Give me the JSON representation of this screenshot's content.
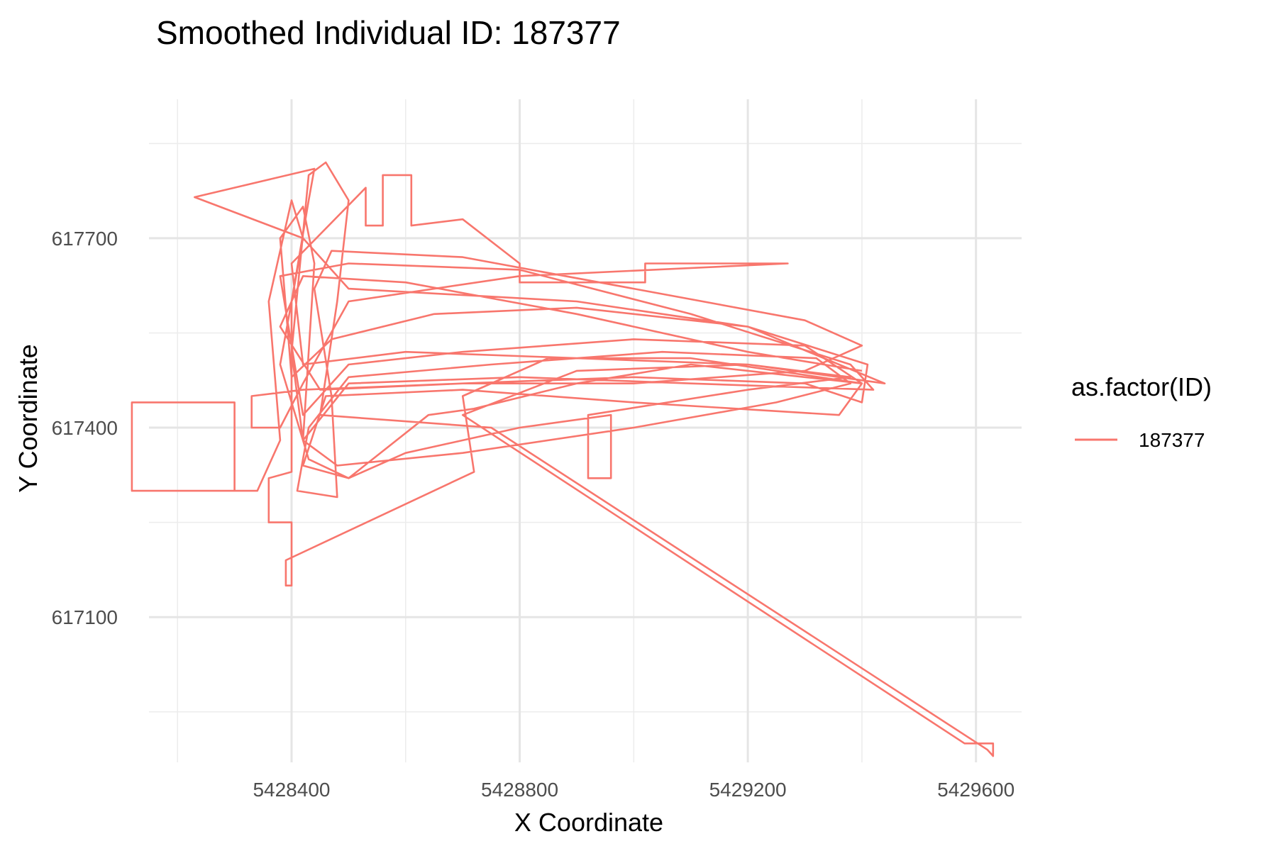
{
  "chart_data": {
    "type": "line",
    "title": "Smoothed Individual ID: 187377",
    "xlabel": "X Coordinate",
    "ylabel": "Y Coordinate",
    "xlim": [
      5428150,
      5429680
    ],
    "ylim": [
      616870,
      617920
    ],
    "x_ticks": [
      5428400,
      5428800,
      5429200,
      5429600
    ],
    "x_minor": [
      5428200,
      5428600,
      5429000,
      5429400
    ],
    "y_ticks": [
      617100,
      617400,
      617700
    ],
    "y_minor": [
      616950,
      617250,
      617550,
      617850
    ],
    "x_tick_labels": [
      "5428400",
      "5428800",
      "5429200",
      "5429600"
    ],
    "y_tick_labels": [
      "617100",
      "617400",
      "617700"
    ],
    "grid": true,
    "legend": {
      "title": "as.factor(ID)",
      "position": "right",
      "entries": [
        "187377"
      ]
    },
    "series": [
      {
        "name": "187377",
        "color": "#F8766D",
        "points": [
          [
            5428120,
            617300
          ],
          [
            5428300,
            617300
          ],
          [
            5428300,
            617440
          ],
          [
            5428120,
            617440
          ],
          [
            5428120,
            617300
          ],
          [
            5428340,
            617300
          ],
          [
            5428380,
            617380
          ],
          [
            5428360,
            617600
          ],
          [
            5428400,
            617760
          ],
          [
            5428420,
            617700
          ],
          [
            5428380,
            617500
          ],
          [
            5428430,
            617350
          ],
          [
            5428500,
            617320
          ],
          [
            5428640,
            617420
          ],
          [
            5428720,
            617430
          ],
          [
            5428900,
            617470
          ],
          [
            5429100,
            617500
          ],
          [
            5429300,
            617480
          ],
          [
            5429400,
            617470
          ],
          [
            5429300,
            617530
          ],
          [
            5429000,
            617540
          ],
          [
            5428700,
            617520
          ],
          [
            5428500,
            617500
          ],
          [
            5428420,
            617420
          ],
          [
            5428380,
            617640
          ],
          [
            5428500,
            617660
          ],
          [
            5428800,
            617650
          ],
          [
            5429100,
            617580
          ],
          [
            5429380,
            617500
          ],
          [
            5429420,
            617460
          ],
          [
            5429100,
            617470
          ],
          [
            5428800,
            617480
          ],
          [
            5428500,
            617470
          ],
          [
            5428420,
            617380
          ],
          [
            5428400,
            617520
          ],
          [
            5428430,
            617800
          ],
          [
            5428460,
            617820
          ],
          [
            5428500,
            617760
          ],
          [
            5428480,
            617600
          ],
          [
            5428450,
            617420
          ],
          [
            5428750,
            617400
          ],
          [
            5429620,
            616890
          ],
          [
            5429630,
            616880
          ],
          [
            5429630,
            616900
          ],
          [
            5429580,
            616900
          ],
          [
            5428700,
            617420
          ],
          [
            5428900,
            617490
          ],
          [
            5429200,
            617500
          ],
          [
            5429440,
            617470
          ],
          [
            5429200,
            617560
          ],
          [
            5428900,
            617600
          ],
          [
            5428500,
            617620
          ],
          [
            5428420,
            617700
          ],
          [
            5428230,
            617765
          ],
          [
            5428440,
            617810
          ],
          [
            5428430,
            617760
          ],
          [
            5428400,
            617600
          ],
          [
            5428400,
            617330
          ],
          [
            5428360,
            617320
          ],
          [
            5428360,
            617250
          ],
          [
            5428400,
            617250
          ],
          [
            5428400,
            617150
          ],
          [
            5428390,
            617150
          ],
          [
            5428390,
            617190
          ],
          [
            5428720,
            617330
          ],
          [
            5428700,
            617450
          ],
          [
            5428850,
            617510
          ],
          [
            5429100,
            617510
          ],
          [
            5429400,
            617470
          ],
          [
            5429360,
            617420
          ],
          [
            5429000,
            617440
          ],
          [
            5428700,
            617460
          ],
          [
            5428460,
            617450
          ],
          [
            5428420,
            617340
          ],
          [
            5428500,
            617320
          ],
          [
            5428600,
            617360
          ],
          [
            5428800,
            617400
          ],
          [
            5428960,
            617420
          ],
          [
            5428960,
            617320
          ],
          [
            5428920,
            617320
          ],
          [
            5428920,
            617420
          ],
          [
            5429200,
            617460
          ],
          [
            5429380,
            617480
          ],
          [
            5429200,
            617500
          ],
          [
            5428900,
            617510
          ],
          [
            5428600,
            617520
          ],
          [
            5428420,
            617500
          ],
          [
            5428400,
            617660
          ],
          [
            5428530,
            617780
          ],
          [
            5428530,
            617720
          ],
          [
            5428560,
            617720
          ],
          [
            5428560,
            617800
          ],
          [
            5428610,
            617800
          ],
          [
            5428610,
            617720
          ],
          [
            5428700,
            617730
          ],
          [
            5428800,
            617660
          ],
          [
            5428800,
            617630
          ],
          [
            5429020,
            617630
          ],
          [
            5429020,
            617660
          ],
          [
            5429270,
            617660
          ],
          [
            5428800,
            617640
          ],
          [
            5428500,
            617600
          ],
          [
            5428420,
            617470
          ],
          [
            5428380,
            617400
          ],
          [
            5428330,
            617400
          ],
          [
            5428330,
            617450
          ],
          [
            5428420,
            617460
          ],
          [
            5428700,
            617470
          ],
          [
            5429000,
            617480
          ],
          [
            5429300,
            617470
          ],
          [
            5429400,
            617440
          ],
          [
            5429410,
            617500
          ],
          [
            5429200,
            617560
          ],
          [
            5428900,
            617590
          ],
          [
            5428650,
            617580
          ],
          [
            5428470,
            617540
          ],
          [
            5428400,
            617480
          ],
          [
            5428380,
            617700
          ],
          [
            5428420,
            617750
          ],
          [
            5428440,
            617660
          ],
          [
            5428420,
            617380
          ],
          [
            5428480,
            617340
          ],
          [
            5428700,
            617360
          ],
          [
            5429000,
            617400
          ],
          [
            5429250,
            617440
          ],
          [
            5429380,
            617470
          ],
          [
            5429320,
            617510
          ],
          [
            5429050,
            617520
          ],
          [
            5428750,
            617500
          ],
          [
            5428500,
            617480
          ],
          [
            5428430,
            617400
          ],
          [
            5428410,
            617300
          ],
          [
            5428480,
            617290
          ],
          [
            5428470,
            617450
          ],
          [
            5428440,
            617620
          ],
          [
            5428470,
            617680
          ],
          [
            5428700,
            617670
          ],
          [
            5429000,
            617620
          ],
          [
            5429300,
            617570
          ],
          [
            5429400,
            617530
          ],
          [
            5429300,
            617490
          ],
          [
            5429000,
            617470
          ],
          [
            5428700,
            617470
          ],
          [
            5428450,
            617460
          ],
          [
            5428380,
            617560
          ],
          [
            5428420,
            617640
          ],
          [
            5428600,
            617630
          ],
          [
            5428900,
            617580
          ],
          [
            5429200,
            617520
          ],
          [
            5429400,
            617490
          ]
        ]
      }
    ]
  }
}
